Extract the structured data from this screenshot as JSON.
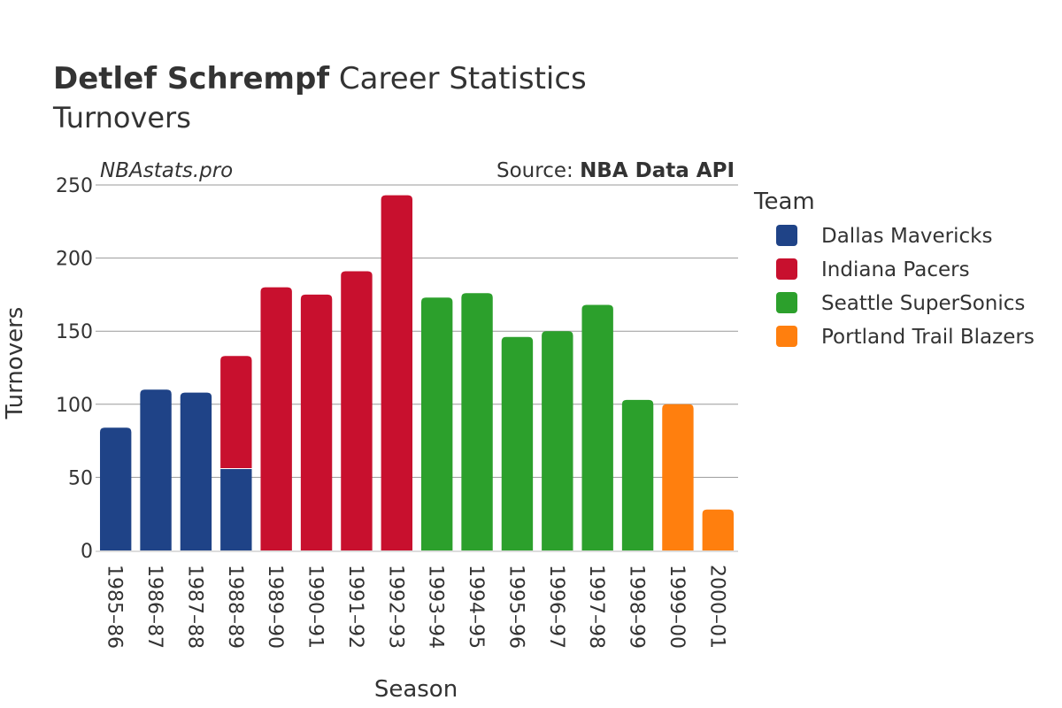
{
  "chart_data": {
    "type": "bar",
    "title_bold": "Detlef Schrempf",
    "title_rest": " Career Statistics",
    "subtitle": "Turnovers",
    "watermark": "NBAstats.pro",
    "source_prefix": "Source: ",
    "source_name": "NBA Data API",
    "xlabel": "Season",
    "ylabel": "Turnovers",
    "ylim": [
      0,
      250
    ],
    "yticks": [
      0,
      50,
      100,
      150,
      200,
      250
    ],
    "grid": true,
    "stacked": true,
    "legend_title": "Team",
    "legend_position": "right",
    "categories": [
      "1985–86",
      "1986–87",
      "1987–88",
      "1988–89",
      "1989–90",
      "1990–91",
      "1991–92",
      "1992–93",
      "1993–94",
      "1994–95",
      "1995–96",
      "1996–97",
      "1997–98",
      "1998–99",
      "1999–00",
      "2000–01"
    ],
    "series": [
      {
        "name": "Dallas Mavericks",
        "color": "#1f4387",
        "values": [
          84,
          110,
          108,
          56,
          0,
          0,
          0,
          0,
          0,
          0,
          0,
          0,
          0,
          0,
          0,
          0
        ]
      },
      {
        "name": "Indiana Pacers",
        "color": "#c8102e",
        "values": [
          0,
          0,
          0,
          77,
          180,
          175,
          191,
          243,
          0,
          0,
          0,
          0,
          0,
          0,
          0,
          0
        ]
      },
      {
        "name": "Seattle SuperSonics",
        "color": "#2ca02c",
        "values": [
          0,
          0,
          0,
          0,
          0,
          0,
          0,
          0,
          173,
          176,
          146,
          150,
          168,
          103,
          0,
          0
        ]
      },
      {
        "name": "Portland Trail Blazers",
        "color": "#ff7f0e",
        "values": [
          0,
          0,
          0,
          0,
          0,
          0,
          0,
          0,
          0,
          0,
          0,
          0,
          0,
          0,
          100,
          28
        ]
      }
    ]
  }
}
